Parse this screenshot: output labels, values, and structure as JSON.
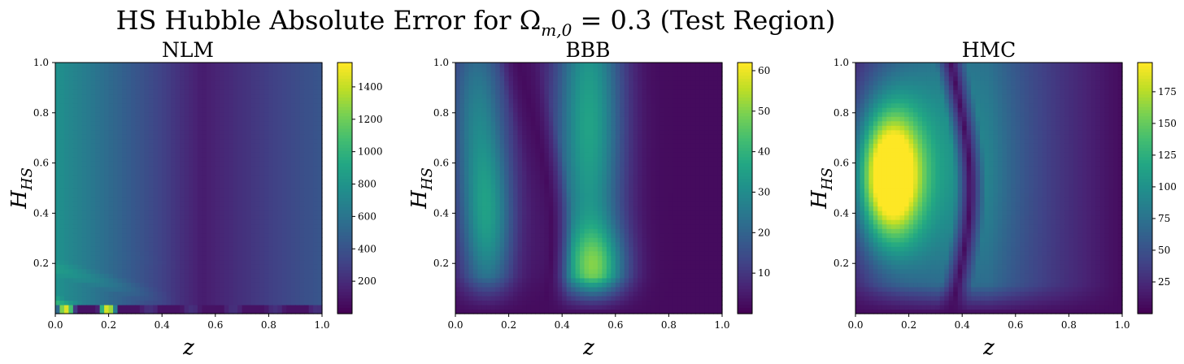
{
  "figure": {
    "suptitle": "HS Hubble Absolute Error for Ωm,0 = 0.3 (Test Region)"
  },
  "chart_data": [
    {
      "type": "heatmap",
      "title": "NLM",
      "xlabel": "z",
      "ylabel": "HHS",
      "xlim": [
        0,
        1
      ],
      "ylim": [
        0,
        1
      ],
      "xticks": [
        "0.0",
        "0.2",
        "0.4",
        "0.6",
        "0.8",
        "1.0"
      ],
      "yticks": [
        "0.2",
        "0.4",
        "0.6",
        "0.8",
        "1.0"
      ],
      "colormap": "viridis",
      "colorbar_range": [
        0,
        1550
      ],
      "colorbar_ticks": [
        "200",
        "400",
        "600",
        "800",
        "1000",
        "1200",
        "1400"
      ],
      "peak_value": 1550,
      "notes_field": "error grows toward low z, minimum near z = 0.55, spikes near H = 0"
    },
    {
      "type": "heatmap",
      "title": "BBB",
      "xlabel": "z",
      "ylabel": "HHS",
      "xlim": [
        0,
        1
      ],
      "ylim": [
        0,
        1
      ],
      "xticks": [
        "0.0",
        "0.2",
        "0.4",
        "0.6",
        "0.8",
        "1.0"
      ],
      "yticks": [
        "0.2",
        "0.4",
        "0.6",
        "0.8",
        "1.0"
      ],
      "colormap": "viridis",
      "colorbar_range": [
        0,
        62
      ],
      "colorbar_ticks": [
        "10",
        "20",
        "30",
        "40",
        "50",
        "60"
      ],
      "peak_value": 62
    },
    {
      "type": "heatmap",
      "title": "HMC",
      "xlabel": "z",
      "ylabel": "HHS",
      "xlim": [
        0,
        1
      ],
      "ylim": [
        0,
        1
      ],
      "xticks": [
        "0.0",
        "0.2",
        "0.4",
        "0.6",
        "0.8",
        "1.0"
      ],
      "yticks": [
        "0.2",
        "0.4",
        "0.6",
        "0.8",
        "1.0"
      ],
      "colormap": "viridis",
      "colorbar_range": [
        0,
        198
      ],
      "colorbar_ticks": [
        "25",
        "50",
        "75",
        "100",
        "125",
        "150",
        "175"
      ],
      "peak_value": 198
    }
  ]
}
